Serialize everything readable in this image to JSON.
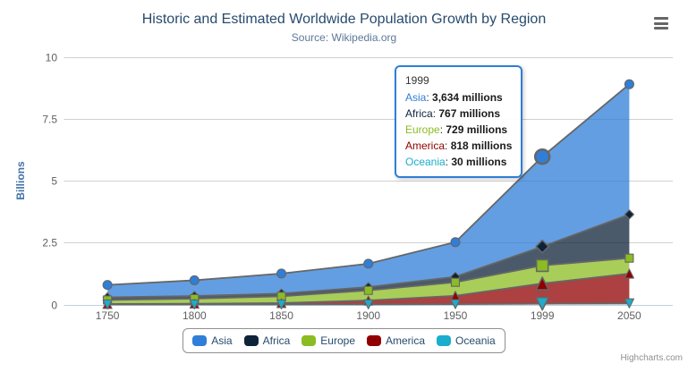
{
  "header": {
    "title": "Historic and Estimated Worldwide Population Growth by Region",
    "subtitle": "Source: Wikipedia.org"
  },
  "credits": {
    "label": "Highcharts.com"
  },
  "chart_data": {
    "type": "area",
    "stacking": "normal",
    "title": "Historic and Estimated Worldwide Population Growth by Region",
    "subtitle": "Source: Wikipedia.org",
    "categories": [
      "1750",
      "1800",
      "1850",
      "1900",
      "1950",
      "1999",
      "2050"
    ],
    "series": [
      {
        "name": "Asia",
        "color": "#2f7ed8",
        "marker": "circle",
        "values": [
          502,
          635,
          809,
          947,
          1402,
          3634,
          5268
        ]
      },
      {
        "name": "Africa",
        "color": "#0d233a",
        "marker": "diamond",
        "values": [
          106,
          107,
          111,
          133,
          221,
          767,
          1766
        ]
      },
      {
        "name": "Europe",
        "color": "#8bbc21",
        "marker": "square",
        "values": [
          163,
          203,
          276,
          408,
          547,
          729,
          628
        ]
      },
      {
        "name": "America",
        "color": "#910000",
        "marker": "triangle",
        "values": [
          18,
          31,
          54,
          156,
          339,
          818,
          1201
        ]
      },
      {
        "name": "Oceania",
        "color": "#1aadce",
        "marker": "triangle-down",
        "values": [
          2,
          2,
          2,
          6,
          13,
          30,
          46
        ]
      }
    ],
    "units": "millions",
    "ylabel": "Billions",
    "yticks": [
      0,
      2.5,
      5,
      7.5,
      10
    ],
    "ytick_labels": [
      "0",
      "2.5",
      "5",
      "7.5",
      "10"
    ],
    "ylim": [
      0,
      10
    ],
    "grid": true,
    "legend_position": "bottom",
    "hover_index": 5,
    "fill_opacity": 0.75,
    "line_color": "#666666",
    "grid_color": "#d0d0d0",
    "axis_line_color": "#c0d0e0",
    "label_color": "#606060",
    "ytitle_color": "#4572a7"
  },
  "tooltip": {
    "header": "1999",
    "rows": [
      {
        "name": "Asia",
        "value": "3,634 millions"
      },
      {
        "name": "Africa",
        "value": "767 millions"
      },
      {
        "name": "Europe",
        "value": "729 millions"
      },
      {
        "name": "America",
        "value": "818 millions"
      },
      {
        "name": "Oceania",
        "value": "30 millions"
      }
    ]
  }
}
